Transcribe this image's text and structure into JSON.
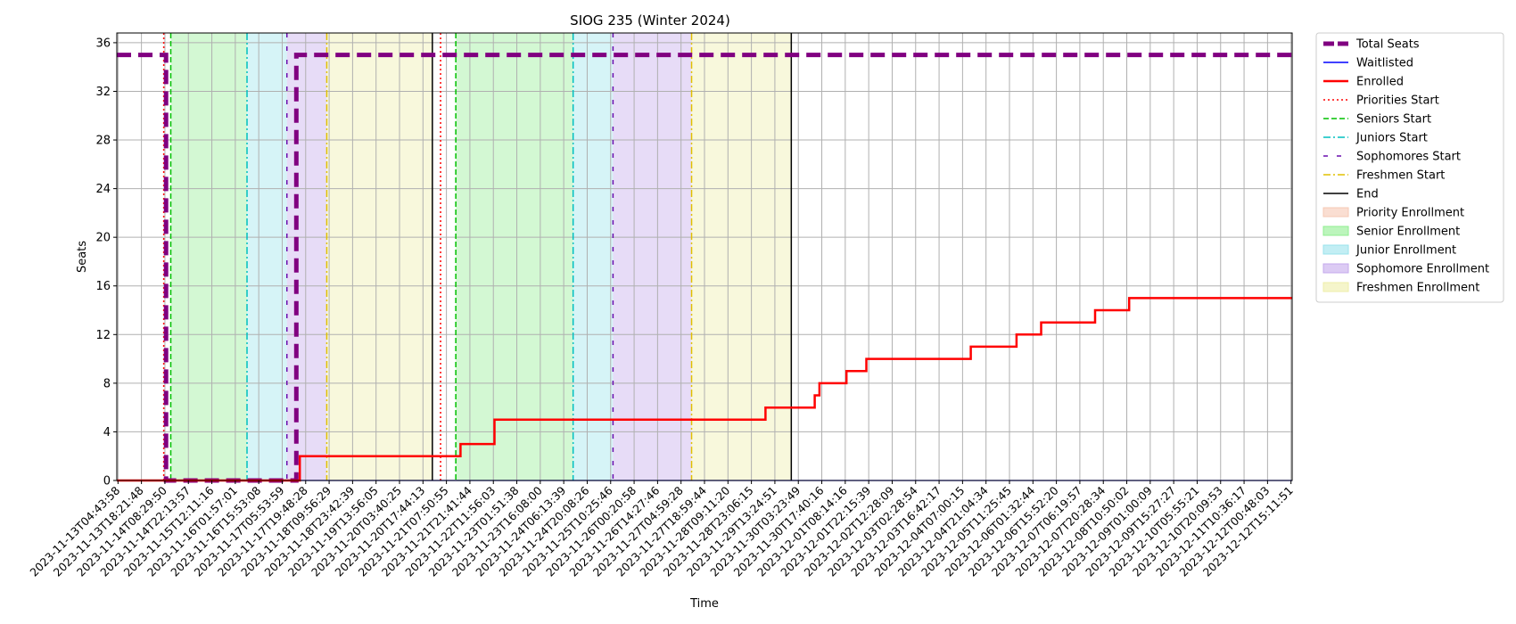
{
  "chart_data": {
    "type": "line",
    "title": "SIOG 235 (Winter 2024)",
    "xlabel": "Time",
    "ylabel": "Seats",
    "ylim": [
      0,
      36.8
    ],
    "y_ticks": [
      0,
      4,
      8,
      12,
      16,
      20,
      24,
      28,
      32,
      36
    ],
    "x_ticks": [
      "2023-11-13T04:43:58",
      "2023-11-13T18:21:48",
      "2023-11-14T08:29:50",
      "2023-11-14T22:13:57",
      "2023-11-15T12:11:16",
      "2023-11-16T01:57:01",
      "2023-11-16T15:53:08",
      "2023-11-17T05:53:59",
      "2023-11-17T19:48:28",
      "2023-11-18T09:56:29",
      "2023-11-18T23:42:39",
      "2023-11-19T13:56:05",
      "2023-11-20T03:40:25",
      "2023-11-20T17:44:13",
      "2023-11-21T07:50:55",
      "2023-11-21T21:41:44",
      "2023-11-22T11:56:03",
      "2023-11-23T01:51:38",
      "2023-11-23T16:08:00",
      "2023-11-24T06:13:39",
      "2023-11-24T20:08:26",
      "2023-11-25T10:25:46",
      "2023-11-26T00:20:58",
      "2023-11-26T14:27:46",
      "2023-11-27T04:59:28",
      "2023-11-27T18:59:44",
      "2023-11-28T09:11:20",
      "2023-11-28T23:06:15",
      "2023-11-29T13:24:51",
      "2023-11-30T03:23:49",
      "2023-11-30T17:40:16",
      "2023-12-01T08:14:16",
      "2023-12-01T22:15:39",
      "2023-12-02T12:28:09",
      "2023-12-03T02:28:54",
      "2023-12-03T16:42:17",
      "2023-12-04T07:00:15",
      "2023-12-04T21:04:34",
      "2023-12-05T11:25:45",
      "2023-12-06T01:32:44",
      "2023-12-06T15:52:20",
      "2023-12-07T06:19:57",
      "2023-12-07T20:28:34",
      "2023-12-08T10:50:02",
      "2023-12-09T01:00:09",
      "2023-12-09T15:27:27",
      "2023-12-10T05:55:21",
      "2023-12-10T20:09:53",
      "2023-12-11T10:36:17",
      "2023-12-12T00:48:03",
      "2023-12-12T15:11:51"
    ],
    "x_range_ticks": [
      -0.05,
      50.05
    ],
    "total_seats": 35,
    "series": [
      {
        "name": "Total Seats",
        "color": "#800080",
        "style": "dashed",
        "x": [
          -0.05,
          2.05,
          2.05,
          7.6,
          7.6,
          50.05
        ],
        "y": [
          35,
          35,
          0,
          0,
          35,
          35
        ]
      },
      {
        "name": "Waitlisted",
        "color": "#0000ff",
        "style": "solid",
        "x": [
          -0.05,
          50.05
        ],
        "y": [
          0,
          0
        ]
      },
      {
        "name": "Enrolled",
        "color": "#ff0000",
        "style": "solid",
        "x": [
          -0.05,
          7.75,
          7.75,
          14.6,
          14.6,
          16.05,
          16.05,
          27.6,
          27.6,
          29.7,
          29.7,
          29.9,
          29.9,
          31.05,
          31.05,
          31.9,
          31.9,
          36.35,
          36.35,
          38.3,
          38.3,
          39.35,
          39.35,
          41.65,
          41.65,
          43.1,
          43.1,
          50.05
        ],
        "y": [
          0,
          0,
          2,
          2,
          3,
          3,
          5,
          5,
          6,
          6,
          7,
          7,
          8,
          8,
          9,
          9,
          10,
          10,
          11,
          11,
          12,
          12,
          13,
          13,
          14,
          14,
          15,
          15
        ]
      }
    ],
    "bands": [
      {
        "name": "Senior Enrollment",
        "from": 2.25,
        "to": 5.5,
        "color": "#90ee90"
      },
      {
        "name": "Junior Enrollment",
        "from": 5.5,
        "to": 7.2,
        "color": "#99e3ec"
      },
      {
        "name": "Sophomore Enrollment",
        "from": 7.2,
        "to": 8.9,
        "color": "#c4a8ec"
      },
      {
        "name": "Freshmen Enrollment",
        "from": 8.9,
        "to": 13.4,
        "color": "#eeeea8"
      },
      {
        "name": "Senior Enrollment",
        "from": 14.4,
        "to": 19.4,
        "color": "#90ee90"
      },
      {
        "name": "Junior Enrollment",
        "from": 19.4,
        "to": 21.1,
        "color": "#99e3ec"
      },
      {
        "name": "Sophomore Enrollment",
        "from": 21.1,
        "to": 24.45,
        "color": "#c4a8ec"
      },
      {
        "name": "Freshmen Enrollment",
        "from": 24.45,
        "to": 28.7,
        "color": "#eeeea8"
      }
    ],
    "vlines": [
      {
        "name": "Priorities Start",
        "x": 1.95,
        "color": "#ff0000",
        "style": "dotted"
      },
      {
        "name": "Seniors Start",
        "x": 2.25,
        "color": "#00c000",
        "style": "dashed"
      },
      {
        "name": "Juniors Start",
        "x": 5.5,
        "color": "#00bfbf",
        "style": "dashdot"
      },
      {
        "name": "Sophomores Start",
        "x": 7.2,
        "color": "#6a0dad",
        "style": "loosedash"
      },
      {
        "name": "Freshmen Start",
        "x": 8.9,
        "color": "#e0c000",
        "style": "dashdot"
      },
      {
        "name": "End",
        "x": 13.4,
        "color": "#000000",
        "style": "solid"
      },
      {
        "name": "Priorities Start",
        "x": 13.75,
        "color": "#ff0000",
        "style": "dotted"
      },
      {
        "name": "Seniors Start",
        "x": 14.4,
        "color": "#00c000",
        "style": "dashed"
      },
      {
        "name": "Juniors Start",
        "x": 19.4,
        "color": "#00bfbf",
        "style": "dashdot"
      },
      {
        "name": "Sophomores Start",
        "x": 21.1,
        "color": "#6a0dad",
        "style": "loosedash"
      },
      {
        "name": "Freshmen Start",
        "x": 24.45,
        "color": "#e0c000",
        "style": "dashdot"
      },
      {
        "name": "End",
        "x": 28.7,
        "color": "#000000",
        "style": "solid"
      }
    ],
    "legend_position": "outside-right",
    "grid": true,
    "legend": [
      {
        "label": "Total Seats",
        "kind": "line",
        "color": "#800080",
        "style": "dashed-thick"
      },
      {
        "label": "Waitlisted",
        "kind": "line",
        "color": "#0000ff",
        "style": "solid"
      },
      {
        "label": "Enrolled",
        "kind": "line",
        "color": "#ff0000",
        "style": "solid-thick"
      },
      {
        "label": "Priorities Start",
        "kind": "line",
        "color": "#ff0000",
        "style": "dotted"
      },
      {
        "label": "Seniors Start",
        "kind": "line",
        "color": "#00c000",
        "style": "dashed"
      },
      {
        "label": "Juniors Start",
        "kind": "line",
        "color": "#00bfbf",
        "style": "dashdot"
      },
      {
        "label": "Sophomores Start",
        "kind": "line",
        "color": "#6a0dad",
        "style": "loosedash"
      },
      {
        "label": "Freshmen Start",
        "kind": "line",
        "color": "#e0c000",
        "style": "dashdot"
      },
      {
        "label": "End",
        "kind": "line",
        "color": "#000000",
        "style": "solid"
      },
      {
        "label": "Priority Enrollment",
        "kind": "patch",
        "color": "#f6c8b4"
      },
      {
        "label": "Senior Enrollment",
        "kind": "patch",
        "color": "#90ee90"
      },
      {
        "label": "Junior Enrollment",
        "kind": "patch",
        "color": "#99e3ec"
      },
      {
        "label": "Sophomore Enrollment",
        "kind": "patch",
        "color": "#c4a8ec"
      },
      {
        "label": "Freshmen Enrollment",
        "kind": "patch",
        "color": "#eeeea8"
      }
    ]
  }
}
